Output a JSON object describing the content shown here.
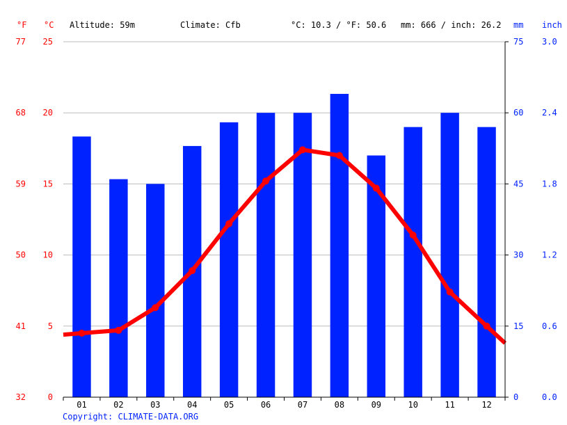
{
  "header": {
    "f_unit": "°F",
    "c_unit": "°C",
    "altitude": "Altitude: 59m",
    "climate": "Climate: Cfb",
    "temp_avg": "°C: 10.3 / °F: 50.6",
    "precip_total": "mm: 666 / inch: 26.2",
    "mm_unit": "mm",
    "inch_unit": "inch"
  },
  "axes": {
    "f_ticks": [
      "32",
      "41",
      "50",
      "59",
      "68",
      "77"
    ],
    "c_ticks": [
      "0",
      "5",
      "10",
      "15",
      "20",
      "25"
    ],
    "mm_ticks": [
      "0",
      "15",
      "30",
      "45",
      "60",
      "75"
    ],
    "inch_ticks": [
      "0.0",
      "0.6",
      "1.2",
      "1.8",
      "2.4",
      "3.0"
    ]
  },
  "copyright": "Copyright: CLIMATE-DATA.ORG",
  "colors": {
    "temperature": "#ff0000",
    "precipitation": "#0022ff",
    "grid": "#bbbbbb"
  },
  "chart_data": {
    "type": "bar",
    "categories": [
      "01",
      "02",
      "03",
      "04",
      "05",
      "06",
      "07",
      "08",
      "09",
      "10",
      "11",
      "12"
    ],
    "series": [
      {
        "values": [
          55,
          46,
          45,
          53,
          58,
          60,
          60,
          64,
          51,
          57,
          60,
          57
        ],
        "axis": "mm",
        "type": "bar"
      },
      {
        "values": [
          4.5,
          4.7,
          6.3,
          8.9,
          12.2,
          15.2,
          17.4,
          17.0,
          14.7,
          11.4,
          7.4,
          5.0
        ],
        "axis": "°C",
        "type": "line"
      }
    ],
    "ylim_temp_c": [
      0,
      25
    ],
    "ylim_precip_mm": [
      0,
      75
    ],
    "grid": true
  }
}
